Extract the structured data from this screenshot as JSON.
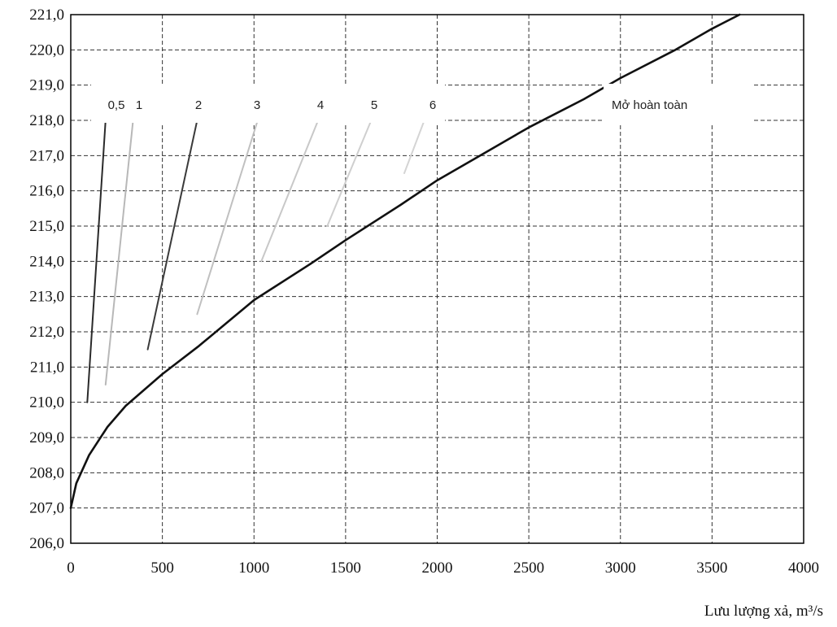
{
  "chart_data": {
    "type": "line",
    "x_unit_label": "Lưu lượng xả, m³/s",
    "xlim": [
      0,
      4000
    ],
    "ylim": [
      206,
      221
    ],
    "x_ticks": [
      "0",
      "500",
      "1000",
      "1500",
      "2000",
      "2500",
      "3000",
      "3500",
      "4000"
    ],
    "y_ticks": [
      "206,0",
      "207,0",
      "208,0",
      "209,0",
      "210,0",
      "211,0",
      "212,0",
      "213,0",
      "214,0",
      "215,0",
      "216,0",
      "217,0",
      "218,0",
      "219,0",
      "220,0",
      "221,0"
    ],
    "grid": "dashed",
    "legend_position": "top",
    "series": [
      {
        "name": "0,5",
        "color": "#2a2a2a",
        "x": [
          90,
          190
        ],
        "y": [
          210.0,
          218.0
        ]
      },
      {
        "name": "1",
        "color": "#b8b8b8",
        "x": [
          190,
          340
        ],
        "y": [
          210.5,
          218.0
        ]
      },
      {
        "name": "2",
        "color": "#3a3a3a",
        "x": [
          420,
          690
        ],
        "y": [
          211.5,
          218.0
        ]
      },
      {
        "name": "3",
        "color": "#c0c0c0",
        "x": [
          690,
          1020
        ],
        "y": [
          212.5,
          218.0
        ]
      },
      {
        "name": "4",
        "color": "#c8c8c8",
        "x": [
          1040,
          1350
        ],
        "y": [
          214.0,
          218.0
        ]
      },
      {
        "name": "5",
        "color": "#cfcfcf",
        "x": [
          1400,
          1640
        ],
        "y": [
          215.0,
          218.0
        ]
      },
      {
        "name": "6",
        "color": "#d4d4d4",
        "x": [
          1820,
          1930
        ],
        "y": [
          216.5,
          218.0
        ]
      },
      {
        "name": "Mở hoàn toàn",
        "color": "#111111",
        "x": [
          0,
          30,
          100,
          200,
          300,
          500,
          700,
          1000,
          1300,
          1500,
          1800,
          2000,
          2200,
          2500,
          2800,
          3000,
          3300,
          3500,
          3650
        ],
        "y": [
          207.0,
          207.7,
          208.5,
          209.3,
          209.9,
          210.8,
          211.6,
          212.9,
          213.9,
          214.6,
          215.6,
          216.3,
          216.9,
          217.8,
          218.6,
          219.2,
          220.0,
          220.6,
          221.0
        ]
      }
    ]
  }
}
